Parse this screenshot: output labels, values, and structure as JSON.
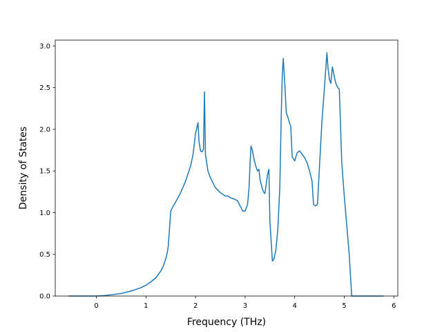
{
  "chart_data": {
    "type": "line",
    "title": "",
    "xlabel": "Frequency (THz)",
    "ylabel": "Density of States",
    "xlim": [
      -0.83,
      6.08
    ],
    "ylim": [
      0.0,
      3.07
    ],
    "xticks": [
      0,
      1,
      2,
      3,
      4,
      5,
      6
    ],
    "yticks": [
      0.0,
      0.5,
      1.0,
      1.5,
      2.0,
      2.5,
      3.0
    ],
    "ytick_format": 1,
    "grid": false,
    "legend": "none",
    "colors": {
      "line": "#1f77b4",
      "axes": "#000000",
      "background": "#ffffff"
    },
    "series": [
      {
        "x": [
          -0.55,
          0.0,
          0.15,
          0.3,
          0.5,
          0.7,
          0.9,
          1.0,
          1.1,
          1.2,
          1.3,
          1.35,
          1.4,
          1.43,
          1.45,
          1.48,
          1.5,
          1.55,
          1.6,
          1.7,
          1.8,
          1.9,
          1.95,
          2.0,
          2.05,
          2.07,
          2.1,
          2.13,
          2.16,
          2.18,
          2.2,
          2.25,
          2.3,
          2.4,
          2.5,
          2.6,
          2.65,
          2.7,
          2.75,
          2.8,
          2.85,
          2.9,
          2.92,
          2.95,
          3.0,
          3.05,
          3.08,
          3.1,
          3.12,
          3.15,
          3.18,
          3.22,
          3.25,
          3.28,
          3.3,
          3.35,
          3.38,
          3.4,
          3.45,
          3.48,
          3.5,
          3.55,
          3.58,
          3.62,
          3.66,
          3.7,
          3.73,
          3.75,
          3.77,
          3.8,
          3.83,
          3.86,
          3.9,
          3.92,
          3.95,
          4.0,
          4.05,
          4.1,
          4.15,
          4.2,
          4.25,
          4.3,
          4.35,
          4.38,
          4.42,
          4.46,
          4.5,
          4.55,
          4.6,
          4.65,
          4.67,
          4.7,
          4.73,
          4.76,
          4.8,
          4.83,
          4.87,
          4.9,
          4.95,
          5.0,
          5.05,
          5.1,
          5.15,
          5.2,
          5.23,
          5.27,
          5.3,
          5.78
        ],
        "y": [
          0.0,
          0.0,
          0.005,
          0.015,
          0.03,
          0.06,
          0.1,
          0.13,
          0.17,
          0.22,
          0.3,
          0.36,
          0.45,
          0.52,
          0.6,
          0.85,
          1.02,
          1.08,
          1.13,
          1.24,
          1.38,
          1.56,
          1.7,
          1.95,
          2.08,
          1.85,
          1.74,
          1.73,
          1.76,
          2.45,
          1.7,
          1.5,
          1.42,
          1.3,
          1.24,
          1.2,
          1.2,
          1.18,
          1.17,
          1.16,
          1.14,
          1.08,
          1.06,
          1.02,
          1.02,
          1.1,
          1.3,
          1.6,
          1.8,
          1.74,
          1.64,
          1.55,
          1.5,
          1.52,
          1.4,
          1.28,
          1.24,
          1.23,
          1.45,
          1.52,
          0.9,
          0.42,
          0.44,
          0.55,
          0.8,
          1.3,
          2.2,
          2.65,
          2.85,
          2.55,
          2.2,
          2.15,
          2.07,
          2.04,
          1.67,
          1.62,
          1.72,
          1.74,
          1.7,
          1.66,
          1.6,
          1.5,
          1.38,
          1.1,
          1.08,
          1.1,
          1.55,
          2.1,
          2.5,
          2.92,
          2.75,
          2.6,
          2.55,
          2.75,
          2.63,
          2.55,
          2.5,
          2.48,
          1.6,
          1.2,
          0.85,
          0.5,
          0.0,
          0.0,
          0.0,
          0.0,
          0.0,
          0.0
        ]
      }
    ]
  }
}
